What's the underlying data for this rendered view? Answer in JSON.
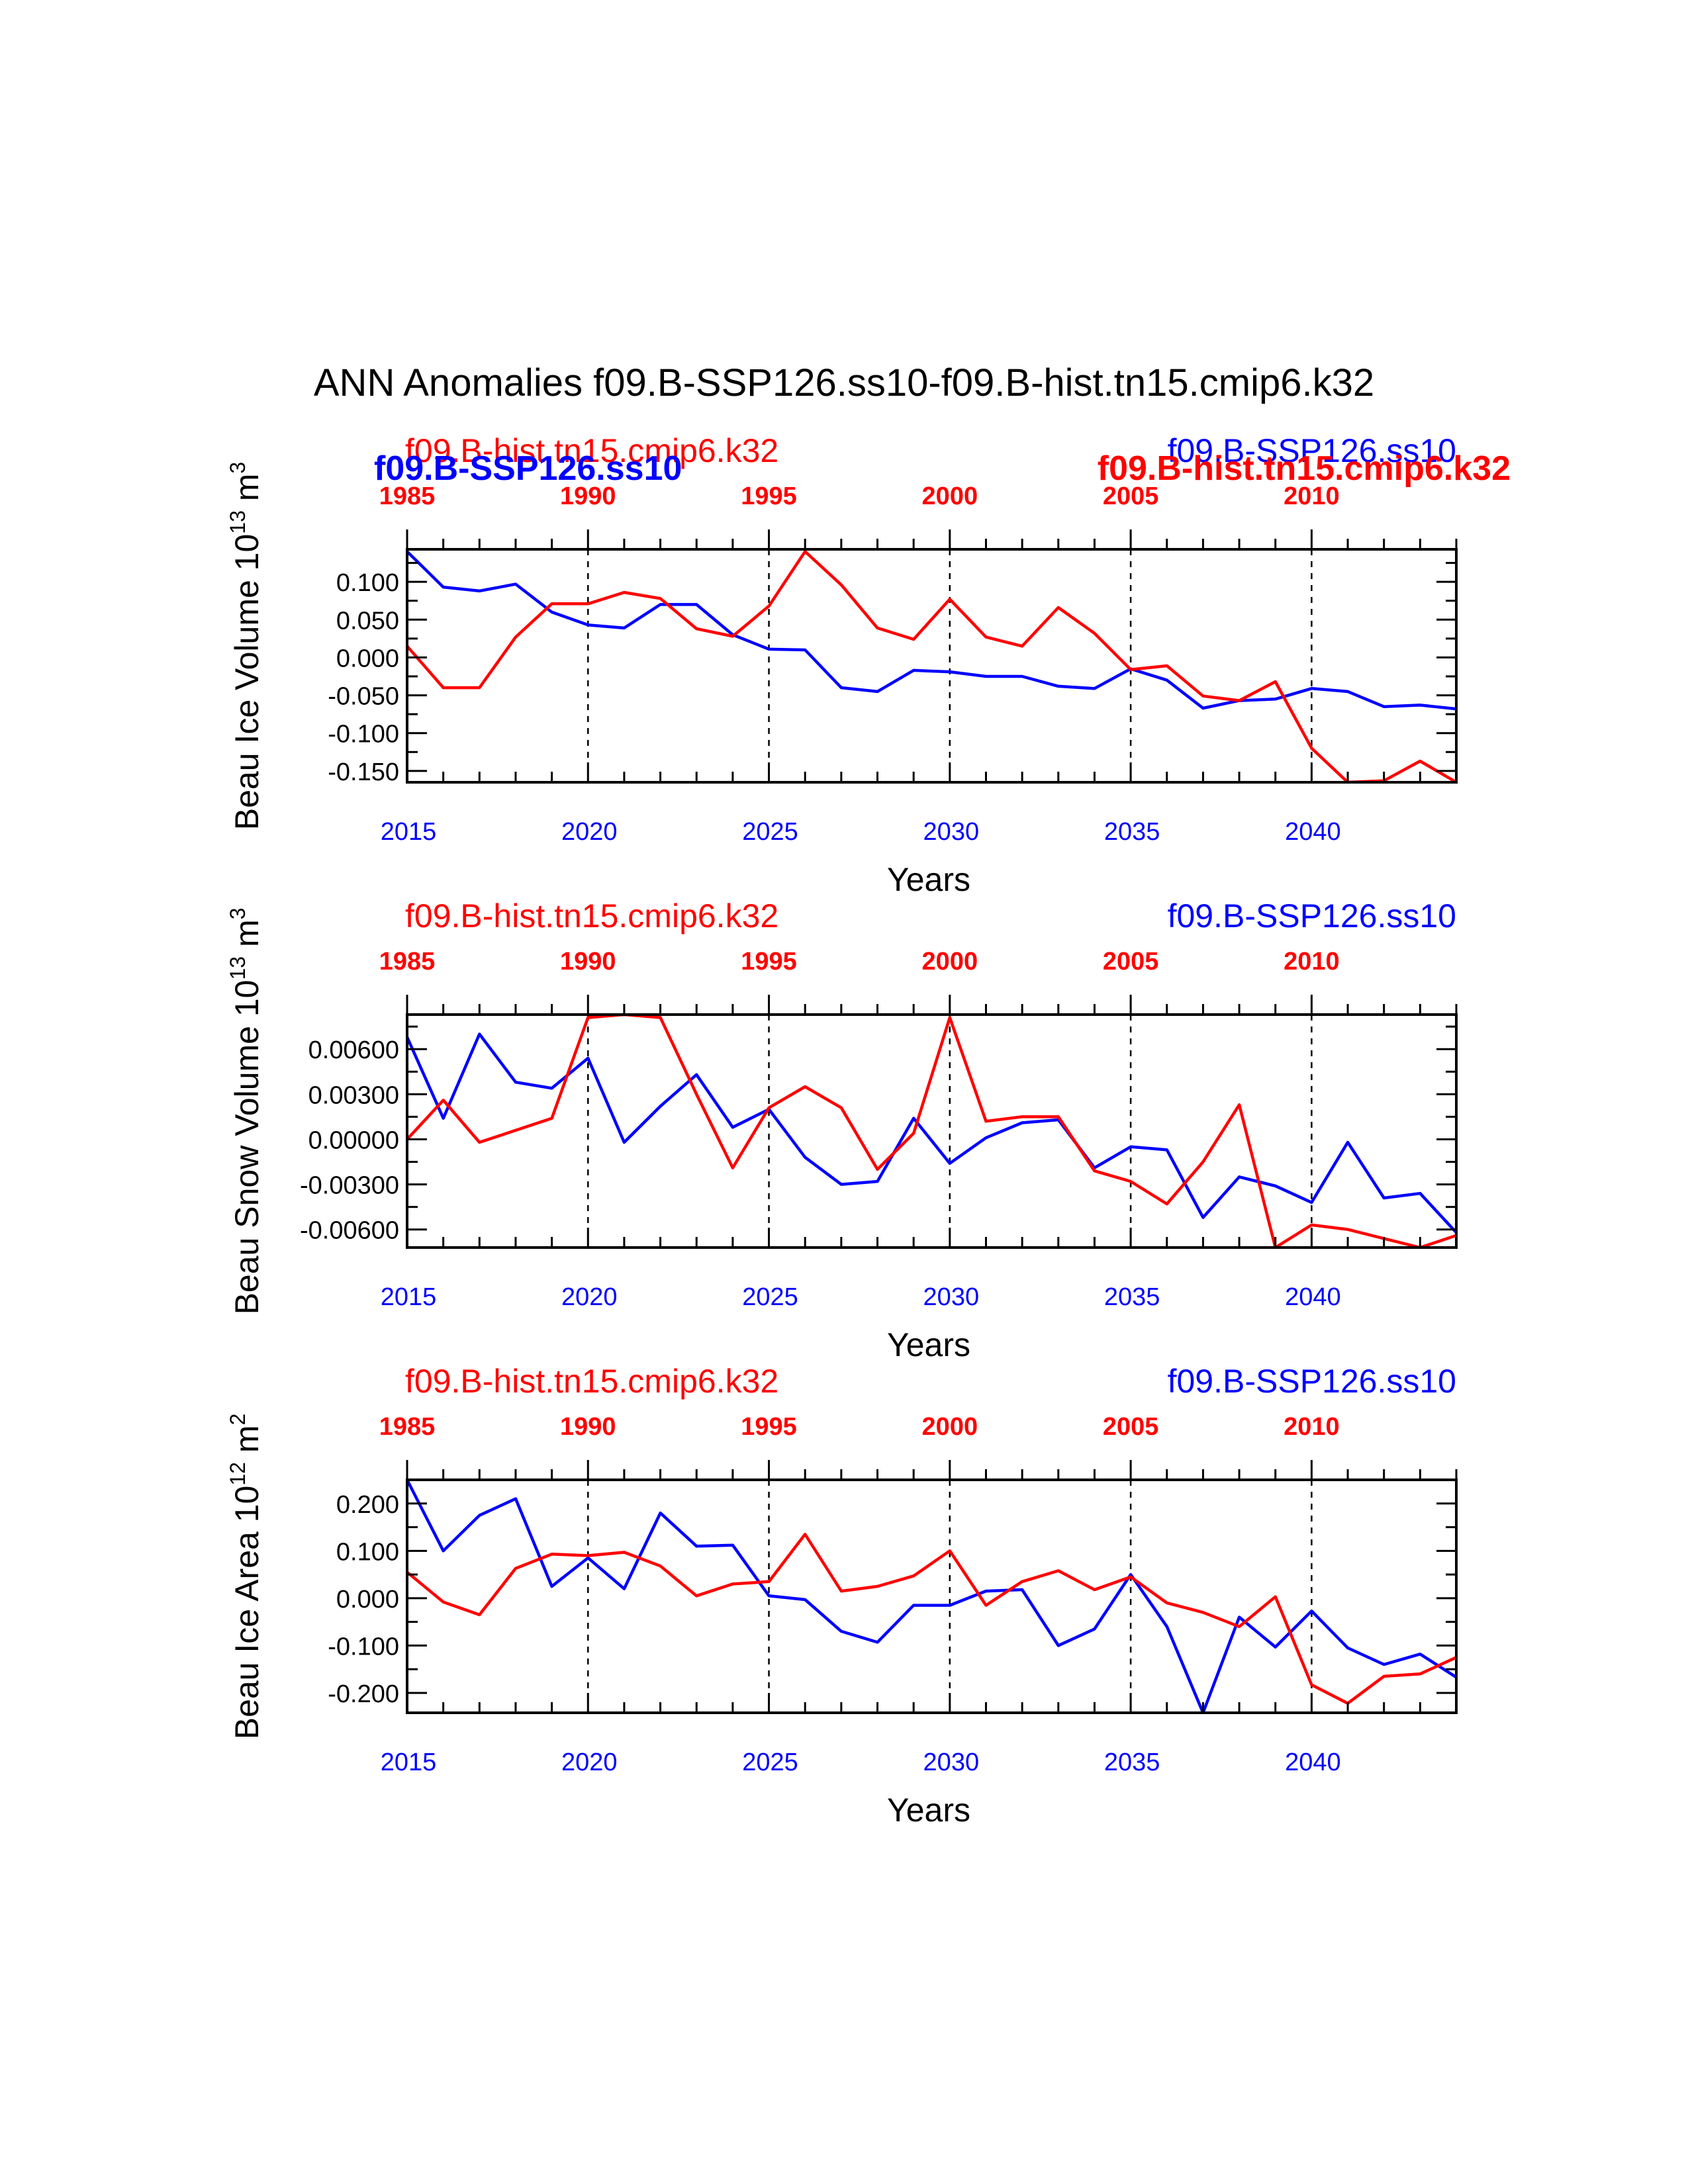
{
  "title": "ANN Anomalies f09.B-SSP126.ss10-f09.B-hist.tn15.cmip6.k32",
  "colors": {
    "ssp": "#0000ff",
    "hist": "#ff0000",
    "axis": "#000000"
  },
  "chart_data": [
    {
      "type": "line",
      "ylabel": "Beau Ice Volume 10",
      "ylabel_exp": "13",
      "ylabel_unit": " m",
      "ylabel_unit_exp": "3",
      "xlabel": "Years",
      "xlim": [
        2015,
        2044
      ],
      "ylim": [
        -0.165,
        0.143
      ],
      "yticks": [
        0.1,
        0.05,
        0.0,
        -0.05,
        -0.1,
        -0.15
      ],
      "yticklabels": [
        "0.100",
        "0.050",
        "0.000",
        "-0.050",
        "-0.100",
        "-0.150"
      ],
      "xticks": [
        2015,
        2020,
        2025,
        2030,
        2035,
        2040
      ],
      "xticklabels": [
        "2015",
        "2020",
        "2025",
        "2030",
        "2035",
        "2040"
      ],
      "top_xticklabels": [
        "1985",
        "1990",
        "1995",
        "2000",
        "2005",
        "2010"
      ],
      "hist_label": "f09.B-hist.tn15.cmip6.k32",
      "ssp_label": "f09.B-SSP126.ss10",
      "overlay_labels": {
        "ssp_bold": "f09.B-SSP126.ss10",
        "hist_bold": "f09.B-hist.tn15.cmip6.k32"
      },
      "series": [
        {
          "name": "f09.B-SSP126.ss10",
          "color_key": "ssp",
          "values": [
            0.14,
            0.093,
            0.088,
            0.097,
            0.06,
            0.043,
            0.039,
            0.07,
            0.07,
            0.03,
            0.011,
            0.01,
            -0.04,
            -0.045,
            -0.017,
            -0.019,
            -0.025,
            -0.025,
            -0.038,
            -0.041,
            -0.015,
            -0.03,
            -0.067,
            -0.057,
            -0.055,
            -0.041,
            -0.045,
            -0.065,
            -0.063,
            -0.068
          ]
        },
        {
          "name": "f09.B-hist.tn15.cmip6.k32",
          "color_key": "hist",
          "values": [
            0.015,
            -0.04,
            -0.04,
            0.027,
            0.071,
            0.071,
            0.086,
            0.078,
            0.038,
            0.028,
            0.068,
            0.14,
            0.096,
            0.039,
            0.024,
            0.077,
            0.027,
            0.015,
            0.066,
            0.032,
            -0.016,
            -0.011,
            -0.051,
            -0.057,
            -0.032,
            -0.12,
            -0.165,
            -0.163,
            -0.137,
            -0.165
          ]
        }
      ]
    },
    {
      "type": "line",
      "ylabel": "Beau Snow Volume 10",
      "ylabel_exp": "13",
      "ylabel_unit": " m",
      "ylabel_unit_exp": "3",
      "xlabel": "Years",
      "xlim": [
        2015,
        2044
      ],
      "ylim": [
        -0.0072,
        0.0083
      ],
      "yticks": [
        0.006,
        0.003,
        0.0,
        -0.003,
        -0.006
      ],
      "yticklabels": [
        "0.00600",
        "0.00300",
        "0.00000",
        "-0.00300",
        "-0.00600"
      ],
      "xticks": [
        2015,
        2020,
        2025,
        2030,
        2035,
        2040
      ],
      "xticklabels": [
        "2015",
        "2020",
        "2025",
        "2030",
        "2035",
        "2040"
      ],
      "top_xticklabels": [
        "1985",
        "1990",
        "1995",
        "2000",
        "2005",
        "2010"
      ],
      "hist_label": "f09.B-hist.tn15.cmip6.k32",
      "ssp_label": "f09.B-SSP126.ss10",
      "series": [
        {
          "name": "f09.B-SSP126.ss10",
          "color_key": "ssp",
          "values": [
            0.0068,
            0.0014,
            0.007,
            0.0038,
            0.0034,
            0.0054,
            -0.0002,
            0.0022,
            0.0043,
            0.0008,
            0.002,
            -0.0012,
            -0.003,
            -0.0028,
            0.0014,
            -0.0016,
            0.0001,
            0.0011,
            0.0013,
            -0.0019,
            -0.0005,
            -0.0007,
            -0.0052,
            -0.0025,
            -0.0031,
            -0.0042,
            -0.0002,
            -0.0039,
            -0.0036,
            -0.0062
          ]
        },
        {
          "name": "f09.B-hist.tn15.cmip6.k32",
          "color_key": "hist",
          "values": [
            0.0,
            0.0026,
            -0.0002,
            0.0006,
            0.0014,
            0.0081,
            0.0083,
            0.0081,
            0.003,
            -0.0019,
            0.0021,
            0.0035,
            0.0021,
            -0.002,
            0.0004,
            0.0081,
            0.0012,
            0.0015,
            0.0015,
            -0.0021,
            -0.0028,
            -0.0043,
            -0.0015,
            0.0023,
            -0.0072,
            -0.0057,
            -0.006,
            -0.0066,
            -0.0072,
            -0.0064
          ]
        }
      ]
    },
    {
      "type": "line",
      "ylabel": "Beau Ice Area 10",
      "ylabel_exp": "12",
      "ylabel_unit": " m",
      "ylabel_unit_exp": "2",
      "xlabel": "Years",
      "xlim": [
        2015,
        2044
      ],
      "ylim": [
        -0.242,
        0.25
      ],
      "yticks": [
        0.2,
        0.1,
        0.0,
        -0.1,
        -0.2
      ],
      "yticklabels": [
        "0.200",
        "0.100",
        "0.000",
        "-0.100",
        "-0.200"
      ],
      "xticks": [
        2015,
        2020,
        2025,
        2030,
        2035,
        2040
      ],
      "xticklabels": [
        "2015",
        "2020",
        "2025",
        "2030",
        "2035",
        "2040"
      ],
      "top_xticklabels": [
        "1985",
        "1990",
        "1995",
        "2000",
        "2005",
        "2010"
      ],
      "hist_label": "f09.B-hist.tn15.cmip6.k32",
      "ssp_label": "f09.B-SSP126.ss10",
      "series": [
        {
          "name": "f09.B-SSP126.ss10",
          "color_key": "ssp",
          "values": [
            0.25,
            0.1,
            0.175,
            0.21,
            0.025,
            0.085,
            0.02,
            0.18,
            0.11,
            0.112,
            0.005,
            -0.003,
            -0.07,
            -0.093,
            -0.015,
            -0.015,
            0.015,
            0.018,
            -0.1,
            -0.065,
            0.05,
            -0.06,
            -0.242,
            -0.04,
            -0.103,
            -0.027,
            -0.105,
            -0.14,
            -0.118,
            -0.167
          ]
        },
        {
          "name": "f09.B-hist.tn15.cmip6.k32",
          "color_key": "hist",
          "values": [
            0.055,
            -0.008,
            -0.035,
            0.063,
            0.093,
            0.09,
            0.097,
            0.068,
            0.005,
            0.03,
            0.035,
            0.135,
            0.015,
            0.025,
            0.047,
            0.1,
            -0.015,
            0.035,
            0.058,
            0.018,
            0.045,
            -0.01,
            -0.03,
            -0.06,
            0.003,
            -0.183,
            -0.222,
            -0.165,
            -0.16,
            -0.125
          ]
        }
      ]
    }
  ]
}
